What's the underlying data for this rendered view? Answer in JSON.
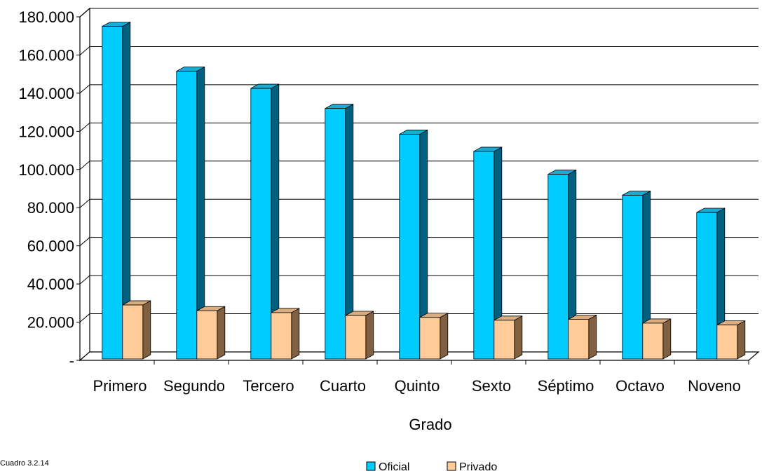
{
  "chart_data": {
    "type": "bar",
    "categories": [
      "Primero",
      "Segundo",
      "Tercero",
      "Cuarto",
      "Quinto",
      "Sexto",
      "Séptimo",
      "Octavo",
      "Noveno"
    ],
    "series": [
      {
        "name": "Oficial",
        "values": [
          175000,
          151500,
          142500,
          132000,
          118500,
          109500,
          97500,
          86500,
          77500
        ]
      },
      {
        "name": "Privado",
        "values": [
          29000,
          26000,
          25000,
          23500,
          22500,
          21000,
          21500,
          19500,
          18500
        ]
      }
    ],
    "title": "",
    "xlabel": "Grado",
    "ylabel": "",
    "ylim": [
      0,
      180000
    ],
    "yticks": [
      {
        "value": 0,
        "label": "-"
      },
      {
        "value": 20000,
        "label": "20.000"
      },
      {
        "value": 40000,
        "label": "40.000"
      },
      {
        "value": 60000,
        "label": "60.000"
      },
      {
        "value": 80000,
        "label": "80.000"
      },
      {
        "value": 100000,
        "label": "100.000"
      },
      {
        "value": 120000,
        "label": "120.000"
      },
      {
        "value": 140000,
        "label": "140.000"
      },
      {
        "value": 160000,
        "label": "160.000"
      },
      {
        "value": 180000,
        "label": "180.000"
      }
    ],
    "grid": true,
    "legend_position": "bottom",
    "colors": {
      "Oficial": {
        "front": "#00ccff",
        "side": "#006080",
        "top": "#1aaad4"
      },
      "Privado": {
        "front": "#ffcc99",
        "side": "#806040",
        "top": "#d9ad80"
      }
    }
  },
  "footnote": "Cuadro 3.2.14"
}
